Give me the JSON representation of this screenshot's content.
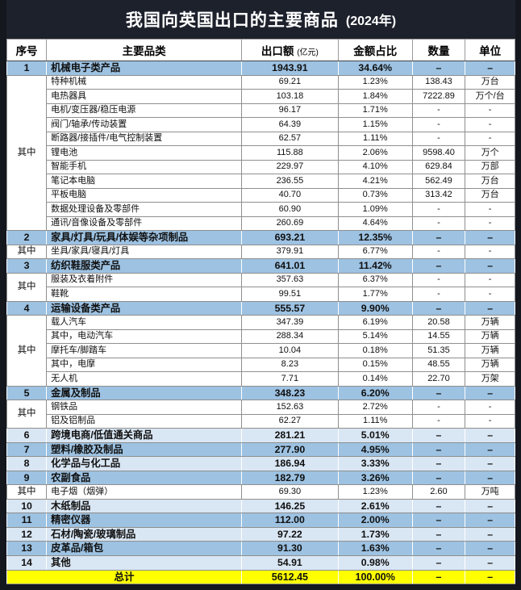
{
  "title": {
    "text": "我国向英国出口的主要商品",
    "year_suffix": "(2024年)"
  },
  "colors": {
    "title_bg": "#1d212c",
    "title_text": "#ffffff",
    "category_row_blue": "#9dc2e2",
    "category_row_light": "#d9e6f3",
    "subrow_white": "#ffffff",
    "total_row_yellow": "#ffff00",
    "border_gray": "#8f8f8f",
    "frame_dark": "#14171e"
  },
  "chart_data": {
    "type": "table",
    "title": "我国向英国出口的主要商品 (2024年)",
    "columns": [
      {
        "label": "序号"
      },
      {
        "label": "主要品类"
      },
      {
        "label": "出口额",
        "sub": "(亿元)"
      },
      {
        "label": "金额占比"
      },
      {
        "label": "数量"
      },
      {
        "label": "单位"
      }
    ],
    "rows": [
      {
        "no": "1",
        "no_rowspan": 1,
        "category": "机械电子类产品",
        "export": "1943.91",
        "share": "34.64%",
        "qty": "–",
        "unit": "–",
        "shade": "blue"
      },
      {
        "no": "其中",
        "no_rowspan": 11,
        "category": "特种机械",
        "export": "69.21",
        "share": "1.23%",
        "qty": "138.43",
        "unit": "万台",
        "shade": "white"
      },
      {
        "category": "电热器具",
        "export": "103.18",
        "share": "1.84%",
        "qty": "7222.89",
        "unit": "万个/台",
        "shade": "white"
      },
      {
        "category": "电机/变压器/稳压电源",
        "export": "96.17",
        "share": "1.71%",
        "qty": "-",
        "unit": "-",
        "shade": "white"
      },
      {
        "category": "阀门/轴承/传动装置",
        "export": "64.39",
        "share": "1.15%",
        "qty": "-",
        "unit": "-",
        "shade": "white"
      },
      {
        "category": "断路器/接插件/电气控制装置",
        "export": "62.57",
        "share": "1.11%",
        "qty": "-",
        "unit": "-",
        "shade": "white"
      },
      {
        "category": "锂电池",
        "export": "115.88",
        "share": "2.06%",
        "qty": "9598.40",
        "unit": "万个",
        "shade": "white"
      },
      {
        "category": "智能手机",
        "export": "229.97",
        "share": "4.10%",
        "qty": "629.84",
        "unit": "万部",
        "shade": "white"
      },
      {
        "category": "笔记本电脑",
        "export": "236.55",
        "share": "4.21%",
        "qty": "562.49",
        "unit": "万台",
        "shade": "white"
      },
      {
        "category": "平板电脑",
        "export": "40.70",
        "share": "0.73%",
        "qty": "313.42",
        "unit": "万台",
        "shade": "white"
      },
      {
        "category": "数据处理设备及零部件",
        "export": "60.90",
        "share": "1.09%",
        "qty": "-",
        "unit": "-",
        "shade": "white"
      },
      {
        "category": "通讯/音像设备及零部件",
        "export": "260.69",
        "share": "4.64%",
        "qty": "-",
        "unit": "-",
        "shade": "white"
      },
      {
        "no": "2",
        "no_rowspan": 1,
        "category": "家具/灯具/玩具/体娱等杂项制品",
        "export": "693.21",
        "share": "12.35%",
        "qty": "–",
        "unit": "–",
        "shade": "blue"
      },
      {
        "no": "其中",
        "no_rowspan": 1,
        "category": "坐具/家具/寝具/灯具",
        "export": "379.91",
        "share": "6.77%",
        "qty": "-",
        "unit": "-",
        "shade": "white"
      },
      {
        "no": "3",
        "no_rowspan": 1,
        "category": "纺织鞋服类产品",
        "export": "641.01",
        "share": "11.42%",
        "qty": "–",
        "unit": "–",
        "shade": "blue"
      },
      {
        "no": "其中",
        "no_rowspan": 2,
        "category": "服装及衣着附件",
        "export": "357.63",
        "share": "6.37%",
        "qty": "-",
        "unit": "-",
        "shade": "white"
      },
      {
        "category": "鞋靴",
        "export": "99.51",
        "share": "1.77%",
        "qty": "-",
        "unit": "-",
        "shade": "white"
      },
      {
        "no": "4",
        "no_rowspan": 1,
        "category": "运输设备类产品",
        "export": "555.57",
        "share": "9.90%",
        "qty": "–",
        "unit": "–",
        "shade": "blue"
      },
      {
        "no": "其中",
        "no_rowspan": 5,
        "category": "载人汽车",
        "export": "347.39",
        "share": "6.19%",
        "qty": "20.58",
        "unit": "万辆",
        "shade": "white"
      },
      {
        "category": "其中，电动汽车",
        "export": "288.34",
        "share": "5.14%",
        "qty": "14.55",
        "unit": "万辆",
        "shade": "white"
      },
      {
        "category": "摩托车/脚踏车",
        "export": "10.04",
        "share": "0.18%",
        "qty": "51.35",
        "unit": "万辆",
        "shade": "white"
      },
      {
        "category": "其中，电摩",
        "export": "8.23",
        "share": "0.15%",
        "qty": "48.55",
        "unit": "万辆",
        "shade": "white"
      },
      {
        "category": "无人机",
        "export": "7.71",
        "share": "0.14%",
        "qty": "22.70",
        "unit": "万架",
        "shade": "white"
      },
      {
        "no": "5",
        "no_rowspan": 1,
        "category": "金属及制品",
        "export": "348.23",
        "share": "6.20%",
        "qty": "–",
        "unit": "–",
        "shade": "blue"
      },
      {
        "no": "其中",
        "no_rowspan": 2,
        "category": "钢铁品",
        "export": "152.63",
        "share": "2.72%",
        "qty": "-",
        "unit": "-",
        "shade": "white"
      },
      {
        "category": "铝及铝制品",
        "export": "62.27",
        "share": "1.11%",
        "qty": "-",
        "unit": "-",
        "shade": "white"
      },
      {
        "no": "6",
        "no_rowspan": 1,
        "category": "跨境电商/低值通关商品",
        "export": "281.21",
        "share": "5.01%",
        "qty": "–",
        "unit": "–",
        "shade": "light"
      },
      {
        "no": "7",
        "no_rowspan": 1,
        "category": "塑料/橡胶及制品",
        "export": "277.90",
        "share": "4.95%",
        "qty": "–",
        "unit": "–",
        "shade": "blue"
      },
      {
        "no": "8",
        "no_rowspan": 1,
        "category": "化学品与化工品",
        "export": "186.94",
        "share": "3.33%",
        "qty": "–",
        "unit": "–",
        "shade": "light"
      },
      {
        "no": "9",
        "no_rowspan": 1,
        "category": "农副食品",
        "export": "182.79",
        "share": "3.26%",
        "qty": "–",
        "unit": "–",
        "shade": "blue"
      },
      {
        "no": "其中",
        "no_rowspan": 1,
        "category": "电子烟（烟弹）",
        "export": "69.30",
        "share": "1.23%",
        "qty": "2.60",
        "unit": "万吨",
        "shade": "white"
      },
      {
        "no": "10",
        "no_rowspan": 1,
        "category": "木纸制品",
        "export": "146.25",
        "share": "2.61%",
        "qty": "–",
        "unit": "–",
        "shade": "light"
      },
      {
        "no": "11",
        "no_rowspan": 1,
        "category": "精密仪器",
        "export": "112.00",
        "share": "2.00%",
        "qty": "–",
        "unit": "–",
        "shade": "blue"
      },
      {
        "no": "12",
        "no_rowspan": 1,
        "category": "石材/陶瓷/玻璃制品",
        "export": "97.22",
        "share": "1.73%",
        "qty": "–",
        "unit": "–",
        "shade": "light"
      },
      {
        "no": "13",
        "no_rowspan": 1,
        "category": "皮革品/箱包",
        "export": "91.30",
        "share": "1.63%",
        "qty": "–",
        "unit": "–",
        "shade": "blue"
      },
      {
        "no": "14",
        "no_rowspan": 1,
        "category": "其他",
        "export": "54.91",
        "share": "0.98%",
        "qty": "–",
        "unit": "–",
        "shade": "light"
      }
    ],
    "total": {
      "label": "总计",
      "export": "5612.45",
      "share": "100.00%",
      "qty": "–",
      "unit": "–"
    }
  }
}
